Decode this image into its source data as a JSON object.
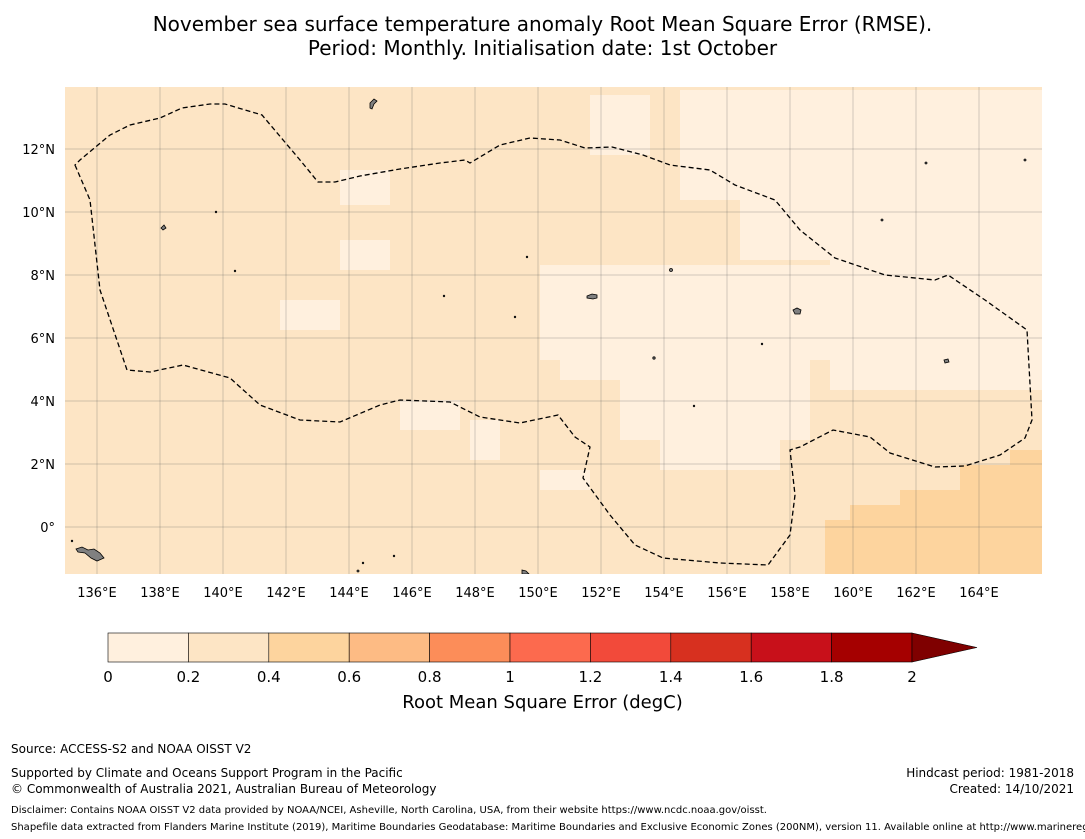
{
  "title": {
    "line1": "November sea surface temperature anomaly Root Mean Square Error (RMSE).",
    "line2": "Period: Monthly. Initialisation date: 1st October"
  },
  "map": {
    "lon_ticks": [
      "136°E",
      "138°E",
      "140°E",
      "142°E",
      "144°E",
      "146°E",
      "148°E",
      "150°E",
      "152°E",
      "154°E",
      "156°E",
      "158°E",
      "160°E",
      "162°E",
      "164°E"
    ],
    "lat_ticks": [
      "12°N",
      "10°N",
      "8°N",
      "6°N",
      "4°N",
      "2°N",
      "0°"
    ],
    "colors": {
      "rmse_0_0.2": "#fff0de",
      "rmse_0.2_0.4": "#fde5c5",
      "rmse_0.4_0.6": "#fdd49e",
      "land": "#808080",
      "boundary": "#000000"
    }
  },
  "colorbar": {
    "ticks": [
      "0",
      "0.2",
      "0.4",
      "0.6",
      "0.8",
      "1",
      "1.2",
      "1.4",
      "1.6",
      "1.8",
      "2"
    ],
    "colors": [
      "#fff0de",
      "#fde5c5",
      "#fdd49e",
      "#fdbb84",
      "#fc8d59",
      "#fc6a4e",
      "#f24a3a",
      "#d7301f",
      "#c8101a",
      "#a50000",
      "#7f0000"
    ],
    "label": "Root Mean Square Error (degC)"
  },
  "footer": {
    "source": "Source: ACCESS-S2 and NOAA OISST V2",
    "supported": "Supported by Climate and Oceans Support Program in the Pacific",
    "copyright": "© Commonwealth of Australia 2021, Australian Bureau of Meteorology",
    "hindcast": "Hindcast period: 1981-2018",
    "created": "Created: 14/10/2021",
    "disclaimer": "Disclaimer: Contains NOAA OISST V2 data provided by NOAA/NCEI, Asheville, North Carolina, USA, from their website https://www.ncdc.noaa.gov/oisst.",
    "shapefile": "Shapefile data extracted from Flanders Marine Institute (2019), Maritime Boundaries Geodatabase: Maritime Boundaries and Exclusive Economic Zones (200NM), version 11. Available online at http://www.marineregions.org/."
  }
}
